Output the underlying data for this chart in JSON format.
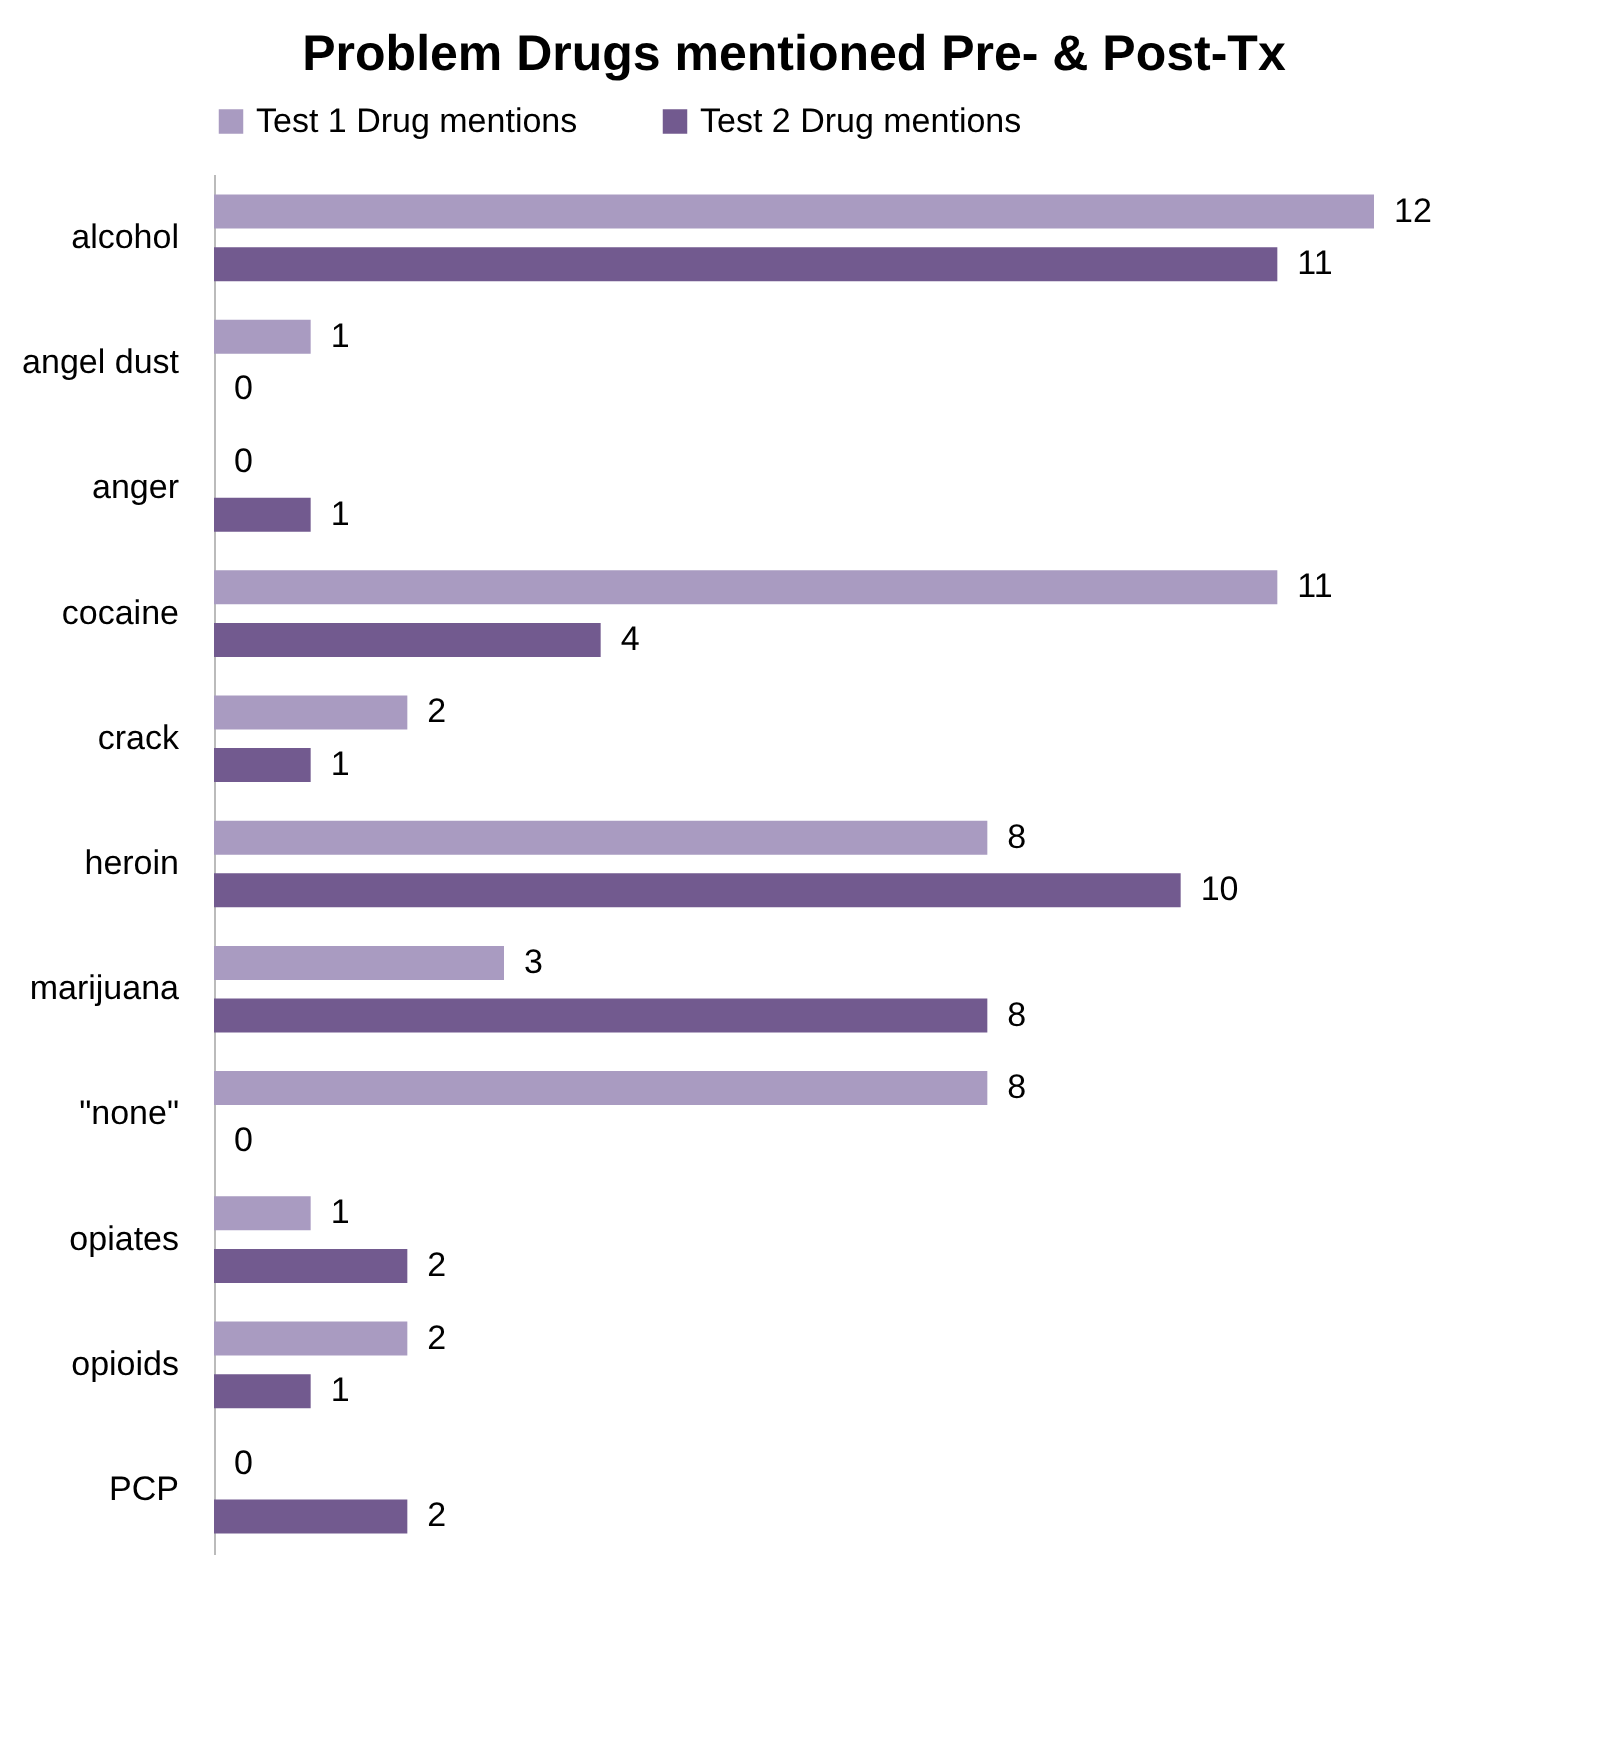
{
  "chart_data": {
    "type": "bar",
    "orientation": "horizontal",
    "title": "Problem Drugs mentioned Pre- & Post-Tx",
    "categories": [
      "alcohol",
      "angel dust",
      "anger",
      "cocaine",
      "crack",
      "heroin",
      "marijuana",
      "\"none\"",
      "opiates",
      "opioids",
      "PCP"
    ],
    "series": [
      {
        "name": "Test 1 Drug mentions",
        "color": "#a99bc1",
        "values": [
          12,
          1,
          0,
          11,
          2,
          8,
          3,
          8,
          1,
          2,
          0
        ]
      },
      {
        "name": "Test 2 Drug mentions",
        "color": "#725a8f",
        "values": [
          11,
          0,
          1,
          4,
          1,
          10,
          8,
          0,
          2,
          1,
          2
        ]
      }
    ],
    "data_labels": true,
    "legend": "top",
    "grid": false,
    "tick_labels": "y"
  }
}
